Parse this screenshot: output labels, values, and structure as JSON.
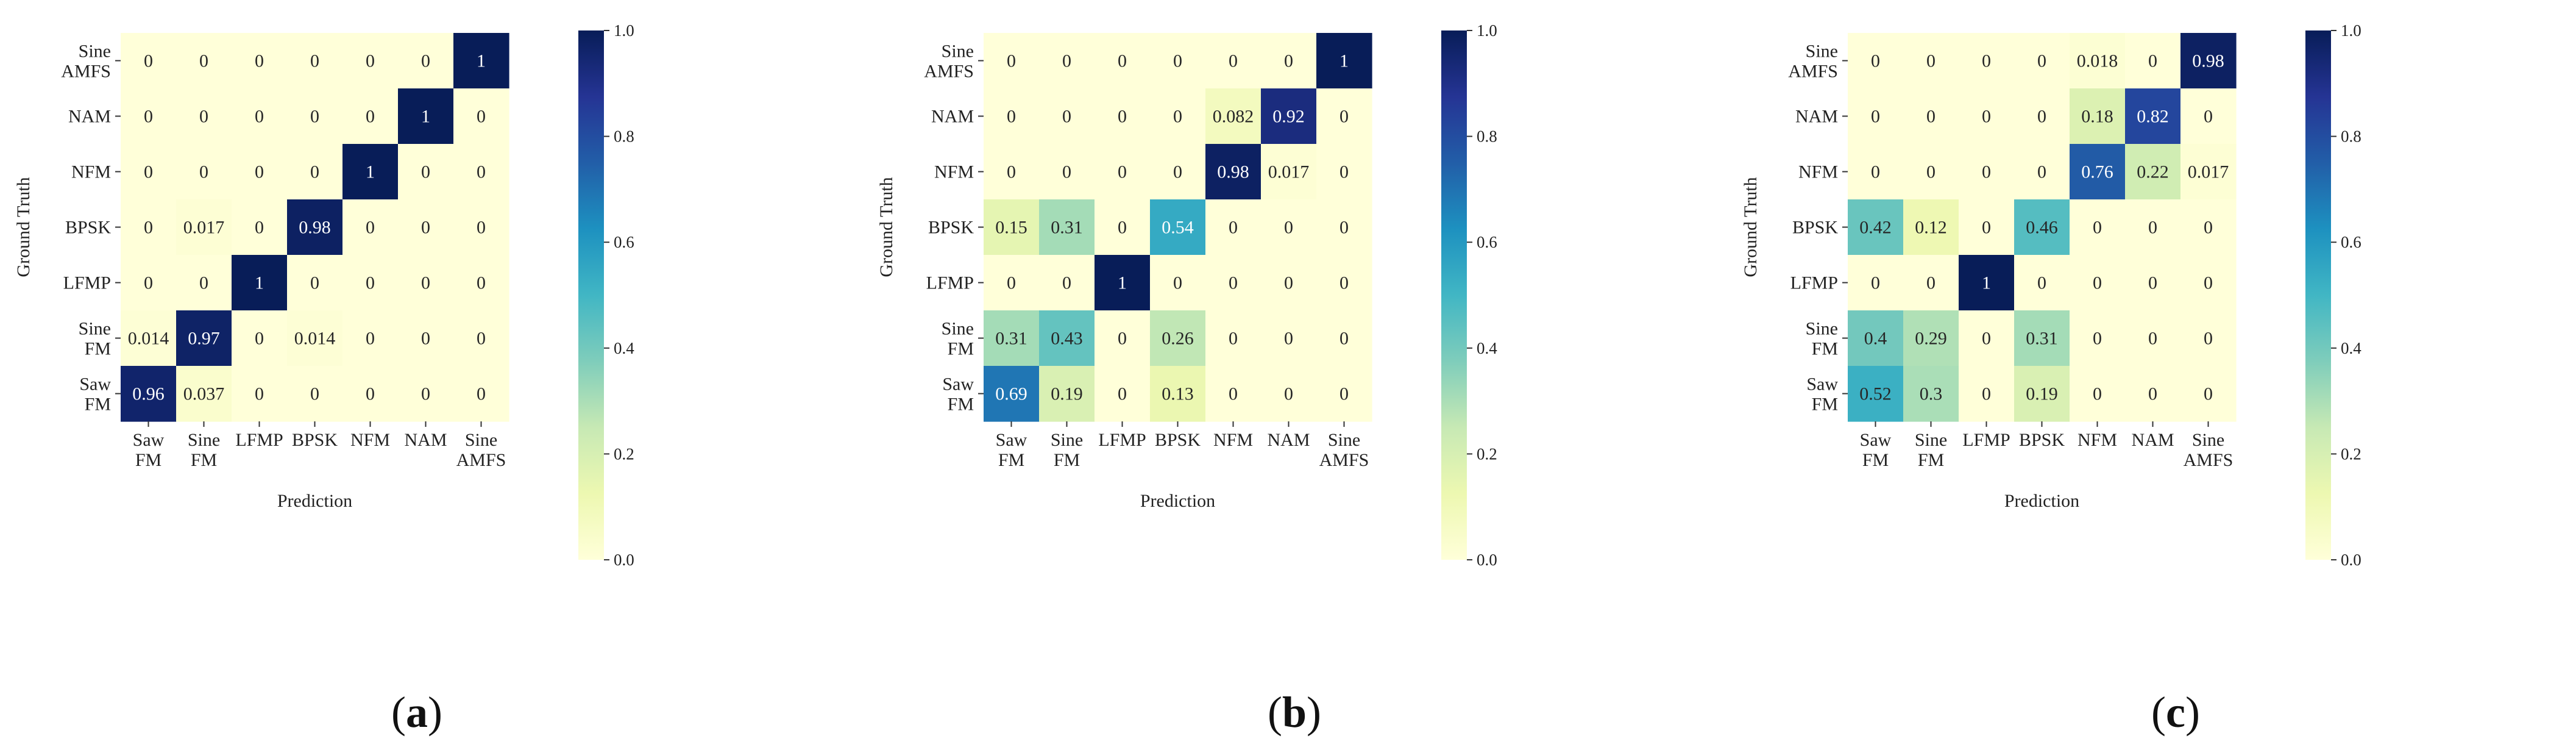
{
  "figure": {
    "panels": [
      {
        "label_open": "(",
        "label_letter": "a",
        "label_close": ")"
      },
      {
        "label_open": "(",
        "label_letter": "b",
        "label_close": ")"
      },
      {
        "label_open": "(",
        "label_letter": "c",
        "label_close": ")"
      }
    ]
  },
  "colorbar": {
    "ticks": [
      "0.0",
      "0.2",
      "0.4",
      "0.6",
      "0.8",
      "1.0"
    ],
    "tick_values": [
      0,
      0.2,
      0.4,
      0.6,
      0.8,
      1.0
    ],
    "colormap": "YlGnBu",
    "colors": [
      "#ffffd9",
      "#edf8b1",
      "#c7e9b4",
      "#7fcdbb",
      "#41b6c4",
      "#1d91c0",
      "#225ea8",
      "#253494",
      "#081d58"
    ]
  },
  "chart_data": [
    {
      "type": "heatmap",
      "title": "",
      "xlabel": "Prediction",
      "ylabel": "Ground Truth",
      "x_categories": [
        [
          "Saw",
          "FM"
        ],
        [
          "Sine",
          "FM"
        ],
        [
          "LFMP"
        ],
        [
          "BPSK"
        ],
        [
          "NFM"
        ],
        [
          "NAM"
        ],
        [
          "Sine",
          "AMFS"
        ]
      ],
      "y_categories": [
        [
          "Sine",
          "AMFS"
        ],
        [
          "NAM"
        ],
        [
          "NFM"
        ],
        [
          "BPSK"
        ],
        [
          "LFMP"
        ],
        [
          "Sine",
          "FM"
        ],
        [
          "Saw",
          "FM"
        ]
      ],
      "vmin": 0,
      "vmax": 1,
      "values": [
        [
          "0",
          "0",
          "0",
          "0",
          "0",
          "0",
          "1"
        ],
        [
          "0",
          "0",
          "0",
          "0",
          "0",
          "1",
          "0"
        ],
        [
          "0",
          "0",
          "0",
          "0",
          "1",
          "0",
          "0"
        ],
        [
          "0",
          "0.017",
          "0",
          "0.98",
          "0",
          "0",
          "0"
        ],
        [
          "0",
          "0",
          "1",
          "0",
          "0",
          "0",
          "0"
        ],
        [
          "0.014",
          "0.97",
          "0",
          "0.014",
          "0",
          "0",
          "0"
        ],
        [
          "0.96",
          "0.037",
          "0",
          "0",
          "0",
          "0",
          "0"
        ]
      ]
    },
    {
      "type": "heatmap",
      "title": "",
      "xlabel": "Prediction",
      "ylabel": "Ground Truth",
      "x_categories": [
        [
          "Saw",
          "FM"
        ],
        [
          "Sine",
          "FM"
        ],
        [
          "LFMP"
        ],
        [
          "BPSK"
        ],
        [
          "NFM"
        ],
        [
          "NAM"
        ],
        [
          "Sine",
          "AMFS"
        ]
      ],
      "y_categories": [
        [
          "Sine",
          "AMFS"
        ],
        [
          "NAM"
        ],
        [
          "NFM"
        ],
        [
          "BPSK"
        ],
        [
          "LFMP"
        ],
        [
          "Sine",
          "FM"
        ],
        [
          "Saw",
          "FM"
        ]
      ],
      "vmin": 0,
      "vmax": 1,
      "values": [
        [
          "0",
          "0",
          "0",
          "0",
          "0",
          "0",
          "1"
        ],
        [
          "0",
          "0",
          "0",
          "0",
          "0.082",
          "0.92",
          "0"
        ],
        [
          "0",
          "0",
          "0",
          "0",
          "0.98",
          "0.017",
          "0"
        ],
        [
          "0.15",
          "0.31",
          "0",
          "0.54",
          "0",
          "0",
          "0"
        ],
        [
          "0",
          "0",
          "1",
          "0",
          "0",
          "0",
          "0"
        ],
        [
          "0.31",
          "0.43",
          "0",
          "0.26",
          "0",
          "0",
          "0"
        ],
        [
          "0.69",
          "0.19",
          "0",
          "0.13",
          "0",
          "0",
          "0"
        ]
      ]
    },
    {
      "type": "heatmap",
      "title": "",
      "xlabel": "Prediction",
      "ylabel": "Ground Truth",
      "x_categories": [
        [
          "Saw",
          "FM"
        ],
        [
          "Sine",
          "FM"
        ],
        [
          "LFMP"
        ],
        [
          "BPSK"
        ],
        [
          "NFM"
        ],
        [
          "NAM"
        ],
        [
          "Sine",
          "AMFS"
        ]
      ],
      "y_categories": [
        [
          "Sine",
          "AMFS"
        ],
        [
          "NAM"
        ],
        [
          "NFM"
        ],
        [
          "BPSK"
        ],
        [
          "LFMP"
        ],
        [
          "Sine",
          "FM"
        ],
        [
          "Saw",
          "FM"
        ]
      ],
      "vmin": 0,
      "vmax": 1,
      "values": [
        [
          "0",
          "0",
          "0",
          "0",
          "0.018",
          "0",
          "0.98"
        ],
        [
          "0",
          "0",
          "0",
          "0",
          "0.18",
          "0.82",
          "0"
        ],
        [
          "0",
          "0",
          "0",
          "0",
          "0.76",
          "0.22",
          "0.017"
        ],
        [
          "0.42",
          "0.12",
          "0",
          "0.46",
          "0",
          "0",
          "0"
        ],
        [
          "0",
          "0",
          "1",
          "0",
          "0",
          "0",
          "0"
        ],
        [
          "0.4",
          "0.29",
          "0",
          "0.31",
          "0",
          "0",
          "0"
        ],
        [
          "0.52",
          "0.3",
          "0",
          "0.19",
          "0",
          "0",
          "0"
        ]
      ]
    }
  ]
}
